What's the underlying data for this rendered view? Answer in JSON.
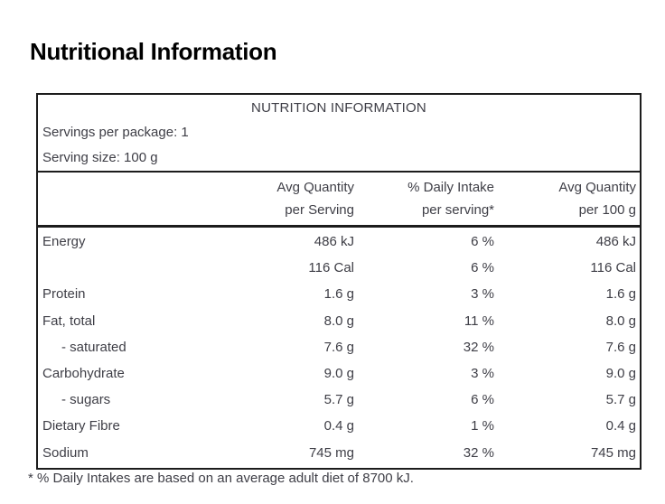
{
  "page": {
    "title": "Nutritional Information"
  },
  "table": {
    "title": "NUTRITION INFORMATION",
    "servings_per_package": "Servings per package: 1",
    "serving_size": "Serving size: 100 g",
    "columns": [
      {
        "line1": "",
        "line2": ""
      },
      {
        "line1": "Avg Quantity",
        "line2": "per Serving"
      },
      {
        "line1": "% Daily Intake",
        "line2": "per serving*"
      },
      {
        "line1": "Avg Quantity",
        "line2": "per 100 g"
      }
    ],
    "rows": [
      {
        "label": "Energy",
        "per_serving": "486 kJ",
        "daily_intake": "6 %",
        "per_100g": "486 kJ"
      },
      {
        "label": "",
        "per_serving": "116 Cal",
        "daily_intake": "6 %",
        "per_100g": "116 Cal"
      },
      {
        "label": "Protein",
        "per_serving": "1.6 g",
        "daily_intake": "3 %",
        "per_100g": "1.6 g"
      },
      {
        "label": "Fat, total",
        "per_serving": "8.0 g",
        "daily_intake": "11 %",
        "per_100g": "8.0 g"
      },
      {
        "label": "- saturated",
        "per_serving": "7.6 g",
        "daily_intake": "32 %",
        "per_100g": "7.6 g"
      },
      {
        "label": "Carbohydrate",
        "per_serving": "9.0 g",
        "daily_intake": "3 %",
        "per_100g": "9.0 g"
      },
      {
        "label": "- sugars",
        "per_serving": "5.7 g",
        "daily_intake": "6 %",
        "per_100g": "5.7 g"
      },
      {
        "label": "Dietary Fibre",
        "per_serving": "0.4 g",
        "daily_intake": "1 %",
        "per_100g": "0.4 g"
      },
      {
        "label": "Sodium",
        "per_serving": "745 mg",
        "daily_intake": "32 %",
        "per_100g": "745 mg"
      }
    ],
    "footnote": "* % Daily Intakes are based on an average adult diet of 8700 kJ."
  },
  "colors": {
    "background": "#ffffff",
    "text": "#3e3e46",
    "border": "#1c1c1c",
    "title": "#000000"
  }
}
